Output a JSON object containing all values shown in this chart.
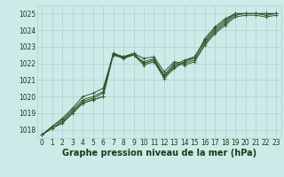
{
  "xlabel": "Graphe pression niveau de la mer (hPa)",
  "ylim": [
    1017.5,
    1025.5
  ],
  "xlim": [
    -0.5,
    23.5
  ],
  "yticks": [
    1018,
    1019,
    1020,
    1021,
    1022,
    1023,
    1024,
    1025
  ],
  "xticks": [
    0,
    1,
    2,
    3,
    4,
    5,
    6,
    7,
    8,
    9,
    10,
    11,
    12,
    13,
    14,
    15,
    16,
    17,
    18,
    19,
    20,
    21,
    22,
    23
  ],
  "bg_color": "#ceeae8",
  "grid_color": "#b0d0cc",
  "line_color": "#2d5a2d",
  "series": [
    [
      1017.7,
      1018.1,
      1018.4,
      1019.0,
      1019.6,
      1019.8,
      1020.0,
      1022.6,
      1022.3,
      1022.6,
      1022.3,
      1022.4,
      1021.5,
      1022.1,
      1022.0,
      1022.2,
      1023.2,
      1023.9,
      1024.4,
      1024.9,
      1025.0,
      1025.0,
      1024.9,
      1025.0
    ],
    [
      1017.7,
      1018.1,
      1018.4,
      1019.0,
      1019.6,
      1019.8,
      1020.0,
      1022.5,
      1022.3,
      1022.5,
      1022.1,
      1022.3,
      1021.3,
      1022.0,
      1021.9,
      1022.1,
      1023.1,
      1023.8,
      1024.3,
      1024.8,
      1024.9,
      1024.9,
      1024.8,
      1024.9
    ],
    [
      1017.7,
      1018.1,
      1018.5,
      1019.1,
      1019.7,
      1019.9,
      1020.2,
      1022.6,
      1022.4,
      1022.6,
      1022.0,
      1022.2,
      1021.2,
      1021.9,
      1022.2,
      1022.4,
      1023.3,
      1024.0,
      1024.5,
      1025.0,
      1025.0,
      1025.0,
      1025.0,
      1025.0
    ],
    [
      1017.7,
      1018.2,
      1018.6,
      1019.2,
      1019.8,
      1020.0,
      1020.3,
      1022.6,
      1022.4,
      1022.6,
      1022.0,
      1022.2,
      1021.2,
      1021.8,
      1022.1,
      1022.4,
      1023.4,
      1024.1,
      1024.6,
      1025.0,
      1025.0,
      1025.0,
      1025.0,
      1025.0
    ],
    [
      1017.7,
      1018.2,
      1018.7,
      1019.3,
      1020.0,
      1020.2,
      1020.5,
      1022.5,
      1022.4,
      1022.5,
      1021.9,
      1022.1,
      1021.1,
      1021.7,
      1022.1,
      1022.3,
      1023.5,
      1024.2,
      1024.7,
      1025.0,
      1025.0,
      1025.0,
      1025.0,
      1025.0
    ]
  ],
  "line_width": 0.7,
  "font_color": "#1a3a1a",
  "tick_fontsize": 5.5,
  "xlabel_fontsize": 7.0
}
